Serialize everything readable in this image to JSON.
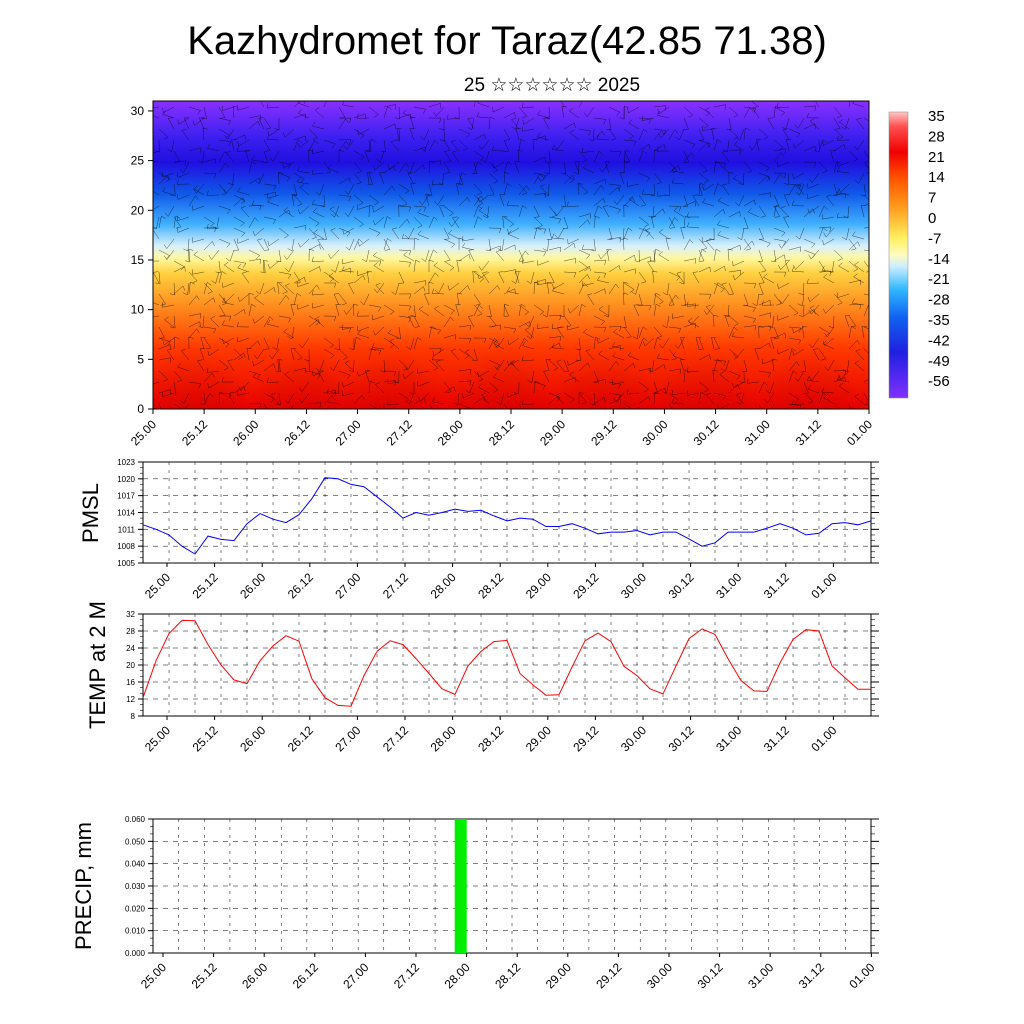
{
  "title": "Kazhydromet for Taraz(42.85 71.38)",
  "subtitle": "25 ☆☆☆☆☆☆ 2025",
  "time_labels": [
    "25.00",
    "25.12",
    "26.00",
    "26.12",
    "27.00",
    "27.12",
    "28.00",
    "28.12",
    "29.00",
    "29.12",
    "30.00",
    "30.12",
    "31.00",
    "31.12",
    "01.00"
  ],
  "chart_data": [
    {
      "type": "heatmap",
      "name": "cross-section",
      "x": [
        "25.00",
        "25.12",
        "26.00",
        "26.12",
        "27.00",
        "27.12",
        "28.00",
        "28.12",
        "29.00",
        "29.12",
        "30.00",
        "30.12",
        "31.00",
        "31.12",
        "01.00"
      ],
      "ylim": [
        0,
        31
      ],
      "yticks": [
        0,
        5,
        10,
        15,
        20,
        25,
        30
      ],
      "colorbar_labels": [
        "35",
        "28",
        "21",
        "14",
        "7",
        "0",
        "-7",
        "-14",
        "-21",
        "-28",
        "-35",
        "-42",
        "-49",
        "-56"
      ],
      "colorbar_range": [
        -60,
        37
      ],
      "overlay": "wind barbs",
      "zero_level_approx": 15.5
    },
    {
      "type": "line",
      "name": "PMSL",
      "ylabel": "PMSL",
      "ylim": [
        1005,
        1023
      ],
      "yticks": [
        1005,
        1008,
        1011,
        1014,
        1017,
        1020,
        1023
      ],
      "color": "#0000ff",
      "x_hours": [
        0,
        3,
        6,
        9,
        12,
        15,
        18,
        21,
        24,
        27,
        30,
        33,
        36,
        39,
        42,
        45,
        48,
        51,
        54,
        57,
        60,
        63,
        66,
        69,
        72,
        75,
        78,
        81,
        84,
        87,
        90,
        93,
        96,
        99,
        102,
        105,
        108,
        111,
        114,
        117,
        120,
        123,
        126,
        129,
        132,
        135,
        138,
        141,
        144,
        147,
        150,
        153,
        156,
        159,
        162,
        165,
        168
      ],
      "values": [
        1011.8,
        1011.0,
        1010.0,
        1008.0,
        1006.6,
        1009.8,
        1009.2,
        1009.0,
        1012.0,
        1013.8,
        1012.8,
        1012.2,
        1013.6,
        1016.5,
        1020.2,
        1020.0,
        1019.0,
        1018.6,
        1016.8,
        1015.0,
        1013.0,
        1014.0,
        1013.5,
        1014.0,
        1014.6,
        1014.2,
        1014.4,
        1013.4,
        1012.5,
        1013.0,
        1012.8,
        1011.5,
        1011.5,
        1012.0,
        1011.2,
        1010.2,
        1010.5,
        1010.5,
        1010.8,
        1010.0,
        1010.5,
        1010.5,
        1009.3,
        1008.0,
        1008.6,
        1010.5,
        1010.5,
        1010.5,
        1011.2,
        1012.0,
        1011.2,
        1010.0,
        1010.3,
        1012.0,
        1012.2,
        1011.8,
        1012.5
      ]
    },
    {
      "type": "line",
      "name": "TEMP at 2 M",
      "ylabel": "TEMP at 2 M",
      "ylim": [
        8,
        32
      ],
      "yticks": [
        8,
        12,
        16,
        20,
        24,
        28,
        32
      ],
      "color": "#ff0000",
      "x_hours": [
        0,
        3,
        6,
        9,
        12,
        15,
        18,
        21,
        24,
        27,
        30,
        33,
        36,
        39,
        42,
        45,
        48,
        51,
        54,
        57,
        60,
        63,
        66,
        69,
        72,
        75,
        78,
        81,
        84,
        87,
        90,
        93,
        96,
        99,
        102,
        105,
        108,
        111,
        114,
        117,
        120,
        123,
        126,
        129,
        132,
        135,
        138,
        141,
        144,
        147,
        150,
        153,
        156,
        159,
        162,
        165,
        168
      ],
      "values": [
        12.3,
        21.0,
        27.4,
        30.5,
        30.4,
        24.8,
        20.0,
        16.5,
        15.6,
        21.0,
        24.5,
        26.9,
        25.6,
        16.7,
        12.3,
        10.5,
        10.3,
        17.5,
        23.2,
        25.7,
        24.8,
        21.5,
        18.0,
        14.4,
        13.1,
        19.8,
        23.2,
        25.5,
        25.8,
        18.0,
        15.3,
        12.9,
        13.0,
        19.5,
        25.7,
        27.5,
        25.5,
        19.7,
        17.5,
        14.4,
        13.2,
        19.8,
        26.2,
        28.5,
        27.2,
        21.5,
        16.3,
        13.9,
        13.8,
        20.5,
        26.0,
        28.3,
        28.0,
        19.8,
        17.0,
        14.3,
        14.3
      ]
    },
    {
      "type": "bar",
      "name": "PRECIP, mm",
      "ylabel": "PRECIP, mm",
      "ylim": [
        0,
        0.06
      ],
      "yticks": [
        "0.000",
        "0.010",
        "0.020",
        "0.030",
        "0.040",
        "0.050",
        "0.060"
      ],
      "color": "#00ee00",
      "bars": [
        {
          "x_hours": 72,
          "value": 0.06
        }
      ]
    }
  ]
}
